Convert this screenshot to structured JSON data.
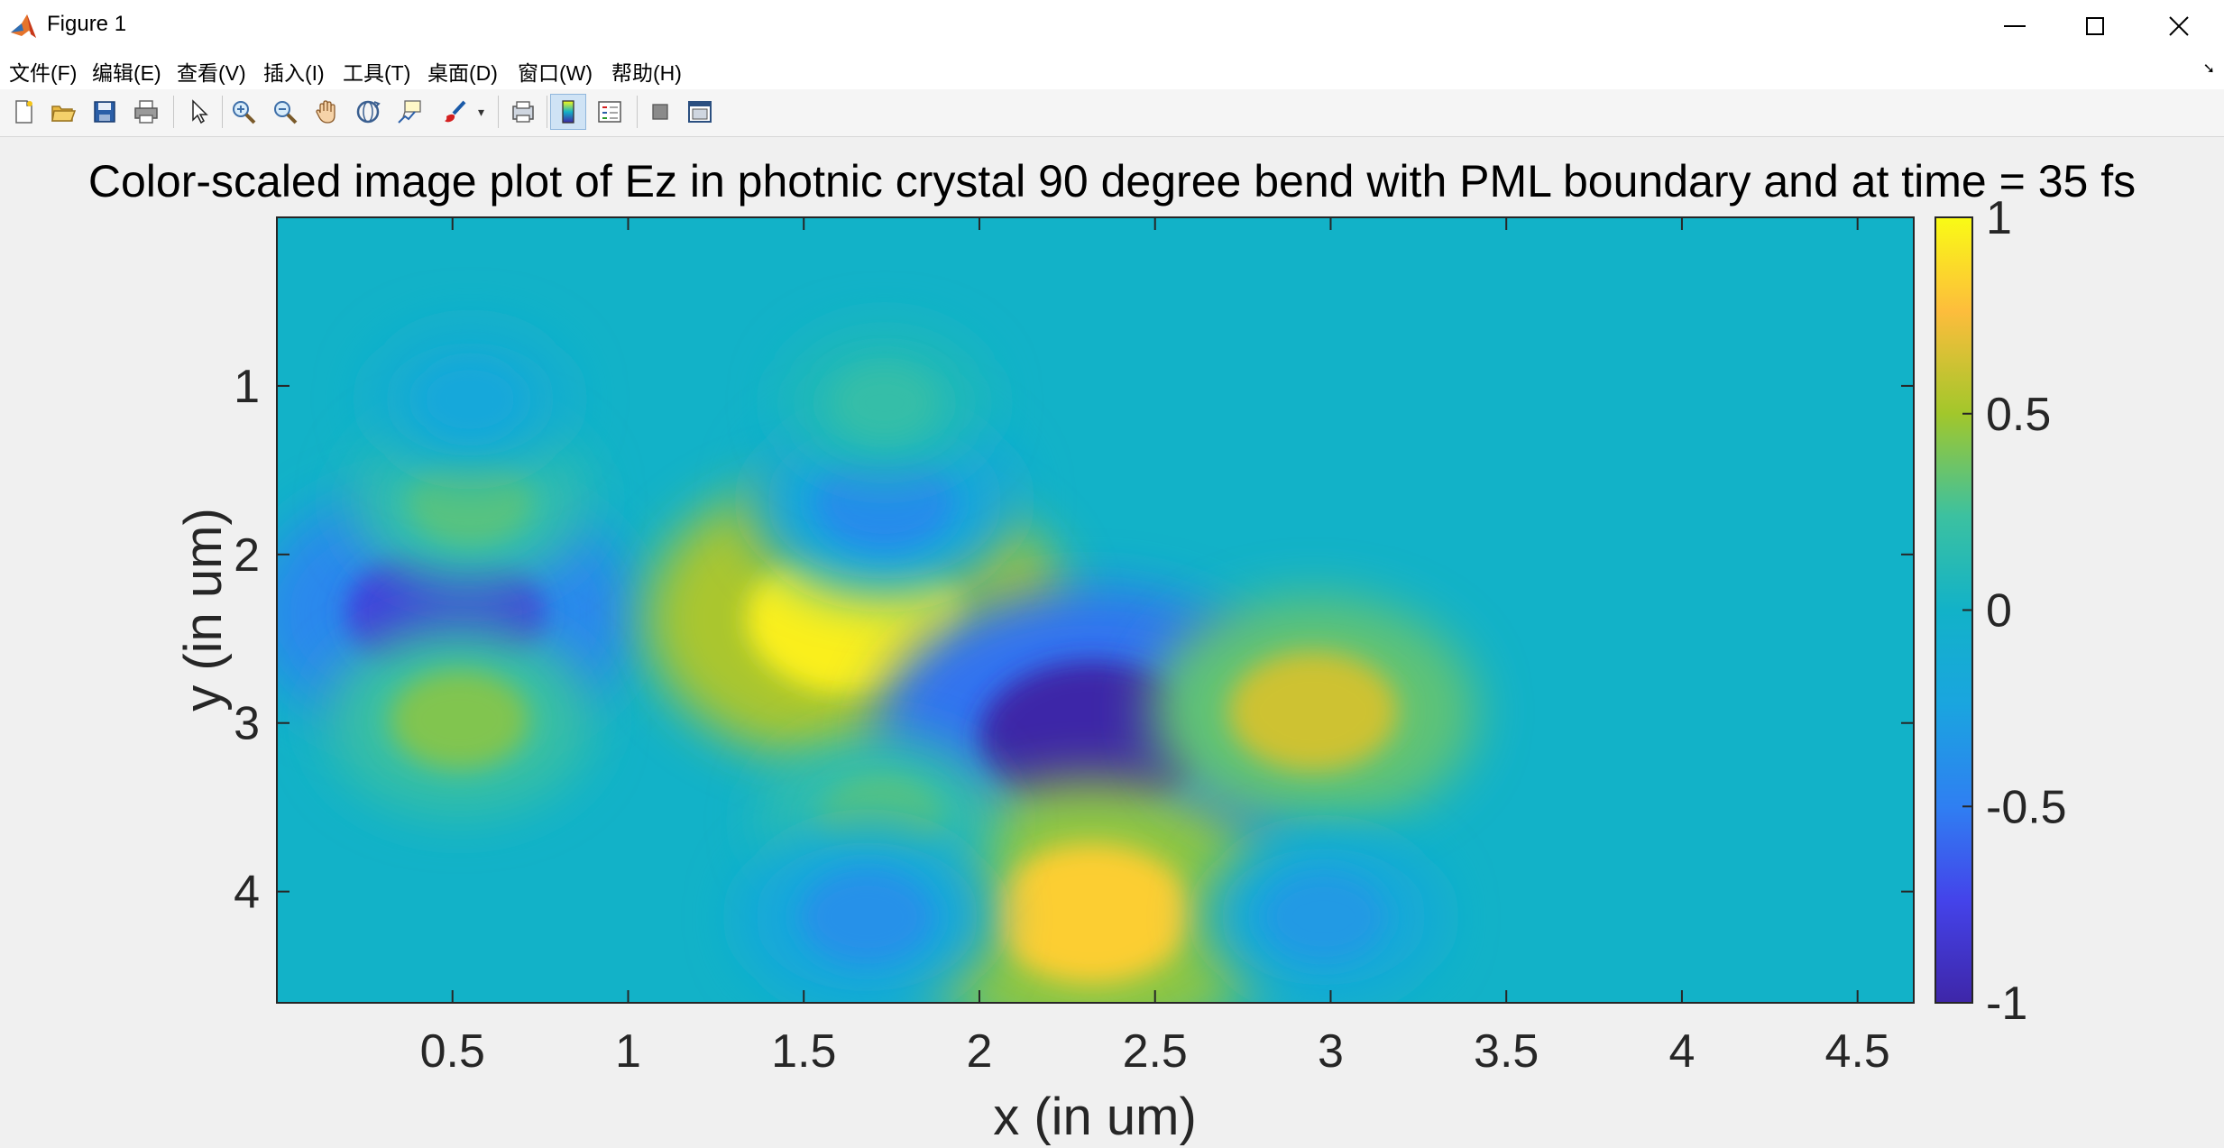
{
  "window": {
    "title": "Figure 1",
    "app_icon": "matlab-icon",
    "controls": [
      "minimize-icon",
      "maximize-icon",
      "close-icon"
    ]
  },
  "menu": {
    "items": [
      {
        "label": "文件(F)"
      },
      {
        "label": "编辑(E)"
      },
      {
        "label": "查看(V)"
      },
      {
        "label": "插入(I)"
      },
      {
        "label": "工具(T)"
      },
      {
        "label": "桌面(D)"
      },
      {
        "label": "窗口(W)"
      },
      {
        "label": "帮助(H)"
      }
    ]
  },
  "toolbar": {
    "buttons": [
      {
        "icon": "new-figure-icon"
      },
      {
        "icon": "open-file-icon"
      },
      {
        "icon": "save-icon"
      },
      {
        "icon": "print-icon"
      },
      {
        "icon": "pointer-icon"
      },
      {
        "icon": "zoom-in-icon"
      },
      {
        "icon": "zoom-out-icon"
      },
      {
        "icon": "pan-hand-icon"
      },
      {
        "icon": "rotate-3d-icon"
      },
      {
        "icon": "data-cursor-icon"
      },
      {
        "icon": "brush-icon"
      },
      {
        "icon": "link-plot-icon"
      },
      {
        "icon": "colorbar-icon",
        "active": true
      },
      {
        "icon": "legend-icon"
      },
      {
        "icon": "hide-plot-tools-icon"
      },
      {
        "icon": "show-plot-tools-icon"
      }
    ]
  },
  "chart_data": {
    "type": "heatmap",
    "title": "Color-scaled image plot of Ez in photnic crystal 90 degree bend with PML boundary and at time = 35 fs",
    "xlabel": "x (in um)",
    "ylabel": "y (in um)",
    "xlim": [
      0.0,
      4.66
    ],
    "ylim": [
      0.0,
      4.66
    ],
    "y_reversed": true,
    "x_ticks": [
      0.5,
      1,
      1.5,
      2,
      2.5,
      3,
      3.5,
      4,
      4.5
    ],
    "x_tick_labels": [
      "0.5",
      "1",
      "1.5",
      "2",
      "2.5",
      "3",
      "3.5",
      "4",
      "4.5"
    ],
    "y_ticks": [
      1,
      2,
      3,
      4
    ],
    "y_tick_labels": [
      "1",
      "2",
      "3",
      "4"
    ],
    "colormap": "parula",
    "clim": [
      -1,
      1
    ],
    "colorbar": {
      "ticks": [
        1,
        0.5,
        0,
        -0.5,
        -1
      ],
      "tick_labels": [
        "1",
        "0.5",
        "0",
        "-0.5",
        "-1"
      ]
    },
    "colors": {
      "min": "#3e26a8",
      "mid_low": "#2f7ff2",
      "zero": "#12b2c8",
      "mid_high": "#a2c72b",
      "max": "#f9fb15"
    },
    "features": [
      {
        "x": 0.48,
        "y": 2.35,
        "value": -0.8
      },
      {
        "x": 1.65,
        "y": 2.38,
        "value": 0.95
      },
      {
        "x": 2.32,
        "y": 3.1,
        "value": -1.0
      },
      {
        "x": 2.32,
        "y": 4.13,
        "value": 0.82
      },
      {
        "x": 2.95,
        "y": 2.93,
        "value": 0.62
      },
      {
        "x": 0.52,
        "y": 2.98,
        "value": 0.42
      },
      {
        "x": 0.55,
        "y": 1.68,
        "value": 0.32
      },
      {
        "x": 1.73,
        "y": 1.68,
        "value": -0.42
      },
      {
        "x": 1.72,
        "y": 3.58,
        "value": 0.32
      },
      {
        "x": 1.68,
        "y": 4.15,
        "value": -0.38
      },
      {
        "x": 2.98,
        "y": 4.15,
        "value": -0.32
      },
      {
        "x": 0.55,
        "y": 1.08,
        "value": -0.2
      },
      {
        "x": 1.73,
        "y": 1.1,
        "value": 0.2
      }
    ]
  }
}
